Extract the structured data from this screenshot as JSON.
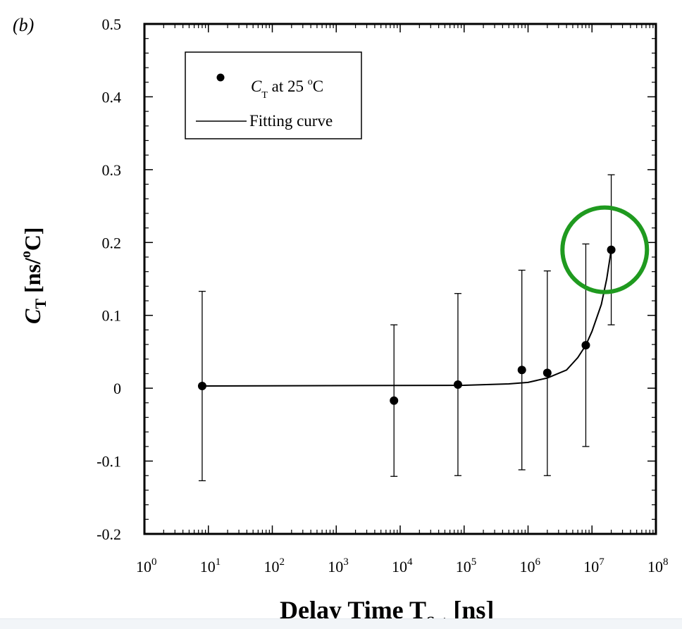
{
  "chart_data": {
    "type": "scatter",
    "panel_label": "(b)",
    "x_scale": "log",
    "xlim": [
      1,
      100000000
    ],
    "ylim": [
      -0.2,
      0.5
    ],
    "x_tick_exponents": [
      0,
      1,
      2,
      3,
      4,
      5,
      6,
      7,
      8
    ],
    "x_tick_base": "10",
    "y_ticks": [
      "-0.2",
      "-0.1",
      "0",
      "0.1",
      "0.2",
      "0.3",
      "0.4",
      "0.5"
    ],
    "xlabel": {
      "main": "Delay Time T",
      "sub": "Set",
      "unit": "[ns]"
    },
    "ylabel": {
      "main": "C",
      "sub": "T",
      "unit": "[ns/",
      "sup": "o",
      "end": "C]"
    },
    "legend": {
      "placement": "top-left",
      "points_label": {
        "main": "C",
        "sub": "T",
        "mid": " at 25 ",
        "sup": "o",
        "end": "C"
      },
      "curve_label": "Fitting curve"
    },
    "series": [
      {
        "kind": "points",
        "marker_color": "#000000",
        "points": [
          {
            "x": 8,
            "y": 0.003,
            "err_low": -0.127,
            "err_high": 0.133
          },
          {
            "x": 8000,
            "y": -0.017,
            "err_low": -0.121,
            "err_high": 0.087
          },
          {
            "x": 80000,
            "y": 0.005,
            "err_low": -0.12,
            "err_high": 0.13
          },
          {
            "x": 800000,
            "y": 0.025,
            "err_low": -0.112,
            "err_high": 0.162
          },
          {
            "x": 2000000,
            "y": 0.021,
            "err_low": -0.12,
            "err_high": 0.161
          },
          {
            "x": 8000000,
            "y": 0.059,
            "err_low": -0.08,
            "err_high": 0.198
          },
          {
            "x": 20000000,
            "y": 0.19,
            "err_low": 0.087,
            "err_high": 0.293
          }
        ]
      },
      {
        "kind": "curve",
        "color": "#000000",
        "points": [
          {
            "x": 8,
            "y": 0.003
          },
          {
            "x": 100000,
            "y": 0.004
          },
          {
            "x": 500000,
            "y": 0.006
          },
          {
            "x": 1000000,
            "y": 0.008
          },
          {
            "x": 2000000,
            "y": 0.014
          },
          {
            "x": 4000000,
            "y": 0.025
          },
          {
            "x": 6000000,
            "y": 0.042
          },
          {
            "x": 8000000,
            "y": 0.059
          },
          {
            "x": 10000000,
            "y": 0.078
          },
          {
            "x": 14000000,
            "y": 0.115
          },
          {
            "x": 17000000,
            "y": 0.15
          },
          {
            "x": 20000000,
            "y": 0.19
          }
        ]
      }
    ],
    "annotation": {
      "shape": "circle",
      "color": "#1f9a1f",
      "center_x": 15800000,
      "center_y": 0.19
    }
  }
}
